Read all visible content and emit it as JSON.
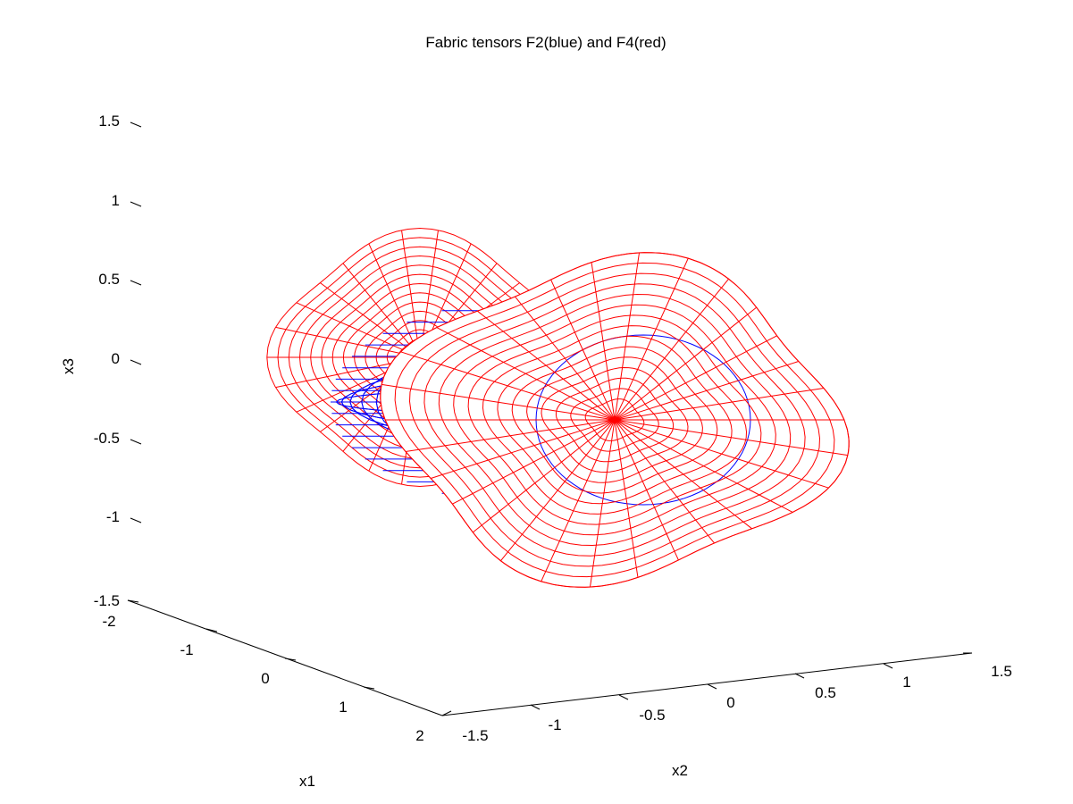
{
  "chart_data": {
    "type": "surface3d",
    "title": "Fabric tensors F2(blue) and F4(red)",
    "xlabel": "x1",
    "ylabel": "x2",
    "zlabel": "x3",
    "x1_range": [
      -2,
      2
    ],
    "x2_range": [
      -1.5,
      1.5
    ],
    "x3_range": [
      -1.5,
      1.5
    ],
    "x1_ticks": [
      "-2",
      "-1",
      "0",
      "1",
      "2"
    ],
    "x2_ticks": [
      "-1.5",
      "-1",
      "-0.5",
      "0",
      "0.5",
      "1",
      "1.5"
    ],
    "x3_ticks": [
      "1.5",
      "1",
      "0.5",
      "0",
      "-0.5",
      "-1",
      "-1.5"
    ],
    "series": [
      {
        "name": "F2",
        "color": "#0000ff",
        "surface": "ellipsoid",
        "extent_x1": 1.0,
        "extent_x2": 1.1,
        "extent_x3": 0.6
      },
      {
        "name": "F4",
        "color": "#ff0000",
        "surface": "lobed ellipsoid",
        "extent_x1": 1.3,
        "extent_x2": 1.4,
        "extent_x3": 1.0
      }
    ]
  }
}
